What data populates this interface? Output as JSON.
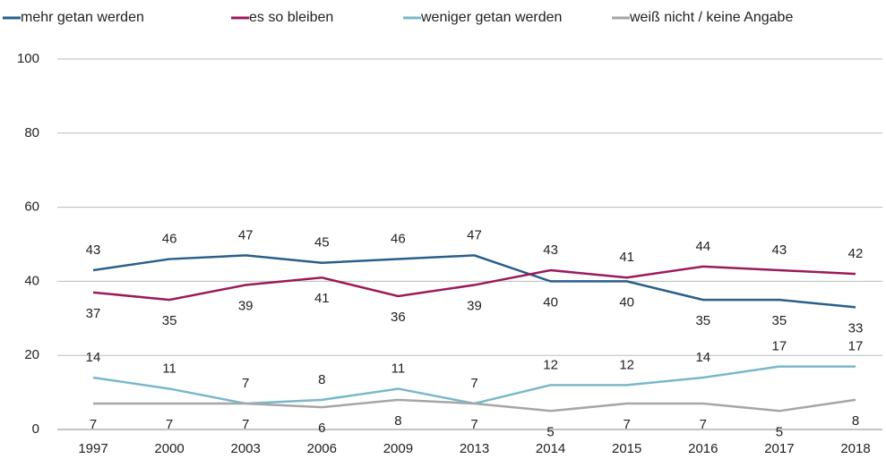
{
  "chart_data": {
    "type": "line",
    "categories": [
      "1997",
      "2000",
      "2003",
      "2006",
      "2009",
      "2013",
      "2014",
      "2015",
      "2016",
      "2017",
      "2018"
    ],
    "series": [
      {
        "name": "mehr getan werden",
        "color": "#2a5f8a",
        "values": [
          43,
          46,
          47,
          45,
          46,
          47,
          40,
          40,
          35,
          35,
          33
        ]
      },
      {
        "name": "es so bleiben",
        "color": "#9b1b5a",
        "values": [
          37,
          35,
          39,
          41,
          36,
          39,
          43,
          41,
          44,
          43,
          42
        ]
      },
      {
        "name": "weniger getan werden",
        "color": "#7ab8c8",
        "values": [
          14,
          11,
          7,
          8,
          11,
          7,
          12,
          12,
          14,
          17,
          17
        ]
      },
      {
        "name": "weiß nicht / keine Angabe",
        "color": "#a6a6a6",
        "values": [
          7,
          7,
          7,
          6,
          8,
          7,
          5,
          7,
          7,
          5,
          8
        ]
      }
    ],
    "ylim": [
      0,
      100
    ],
    "yticks": [
      0,
      20,
      40,
      60,
      80,
      100
    ],
    "grid": true,
    "legend": "top"
  }
}
